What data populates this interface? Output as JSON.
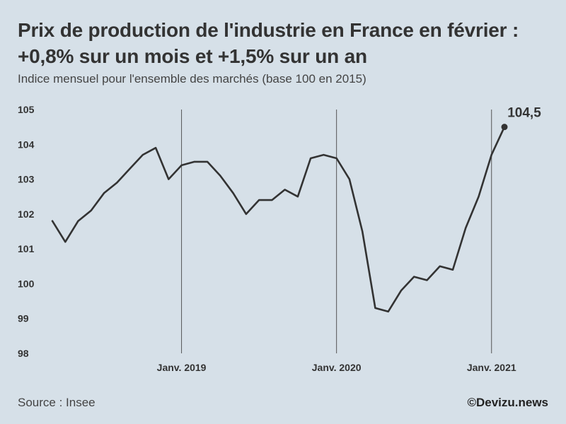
{
  "header": {
    "title_line1": "Prix de production de l'industrie en France en février :",
    "title_line2": "+0,8% sur un mois et +1,5% sur un an",
    "subtitle": "Indice mensuel pour l'ensemble des marchés (base 100 en 2015)"
  },
  "footer": {
    "source": "Source : Insee",
    "credit": "©Devizu.news"
  },
  "colors": {
    "background": "#d6e0e8",
    "line": "#333333",
    "gridline": "#555555"
  },
  "chart_data": {
    "type": "line",
    "title": "Prix de production de l'industrie en France en février : +0,8% sur un mois et +1,5% sur un an",
    "xlabel": "",
    "ylabel": "",
    "ylim": [
      98,
      105
    ],
    "yticks": [
      "98",
      "99",
      "100",
      "101",
      "102",
      "103",
      "104",
      "105"
    ],
    "xticks": [
      {
        "label": "Janv. 2019",
        "index": 10
      },
      {
        "label": "Janv. 2020",
        "index": 22
      },
      {
        "label": "Janv. 2021",
        "index": 34
      }
    ],
    "x": [
      "2018-03",
      "2018-04",
      "2018-05",
      "2018-06",
      "2018-07",
      "2018-08",
      "2018-09",
      "2018-10",
      "2018-11",
      "2018-12",
      "2019-01",
      "2019-02",
      "2019-03",
      "2019-04",
      "2019-05",
      "2019-06",
      "2019-07",
      "2019-08",
      "2019-09",
      "2019-10",
      "2019-11",
      "2019-12",
      "2020-01",
      "2020-02",
      "2020-03",
      "2020-04",
      "2020-05",
      "2020-06",
      "2020-07",
      "2020-08",
      "2020-09",
      "2020-10",
      "2020-11",
      "2020-12",
      "2021-01",
      "2021-02"
    ],
    "values": [
      101.8,
      101.2,
      101.8,
      102.1,
      102.6,
      102.9,
      103.3,
      103.7,
      103.9,
      103.0,
      103.4,
      103.5,
      103.5,
      103.1,
      102.6,
      102.0,
      102.4,
      102.4,
      102.7,
      102.5,
      103.6,
      103.7,
      103.6,
      103.0,
      101.5,
      99.3,
      99.2,
      99.8,
      100.2,
      100.1,
      100.5,
      100.4,
      101.6,
      102.5,
      103.7,
      104.5
    ],
    "end_label": "104,5"
  }
}
